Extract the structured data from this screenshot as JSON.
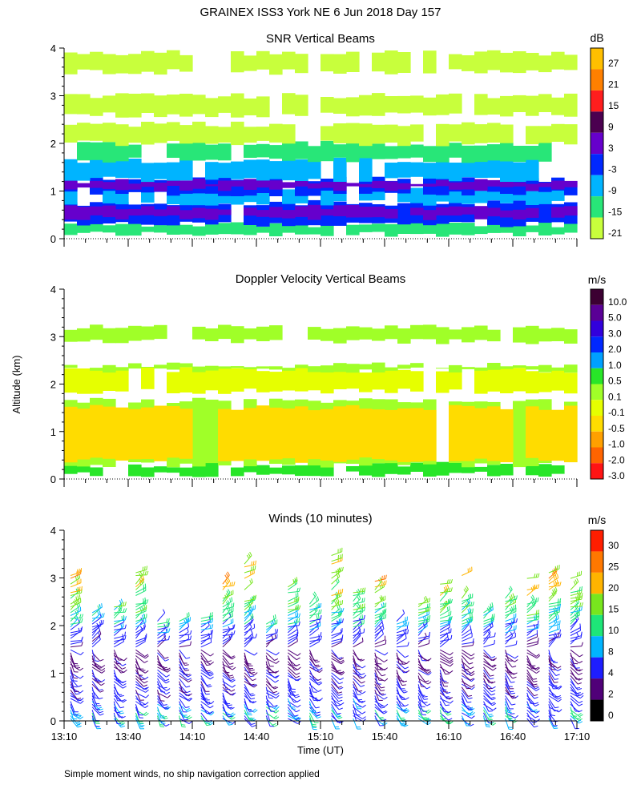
{
  "page_title": "GRAINEX ISS3 York NE    6 Jun 2018 Day 157",
  "shared_axes": {
    "ylabel": "Altitude (km)",
    "xlabel": "Time (UT)",
    "x_tick_labels": [
      "13:10",
      "13:40",
      "14:10",
      "14:40",
      "15:10",
      "15:40",
      "16:10",
      "16:40",
      "17:10"
    ],
    "y_tick_labels": [
      "0",
      "1",
      "2",
      "3",
      "4"
    ],
    "xlim": [
      "13:10",
      "17:10"
    ],
    "ylim": [
      0,
      4
    ]
  },
  "footnote": "Simple moment winds, no ship navigation correction applied",
  "chart_data": [
    {
      "type": "heatmap",
      "title": "SNR Vertical Beams",
      "colorbar_unit": "dB",
      "colorbar_labels": [
        "27",
        "21",
        "15",
        "9",
        "3",
        "-3",
        "-9",
        "-15",
        "-21"
      ],
      "colorbar_colors": [
        "#ffbf00",
        "#ff8000",
        "#ff1e1e",
        "#4b0050",
        "#6600cc",
        "#0028ff",
        "#00b4ff",
        "#28e678",
        "#c8ff3c"
      ],
      "bands": [
        {
          "y0": 0.1,
          "y1": 0.3,
          "color": "#28e678"
        },
        {
          "y0": 0.3,
          "y1": 0.75,
          "color": "#0028ff"
        },
        {
          "y0": 0.45,
          "y1": 0.65,
          "color": "#6600cc"
        },
        {
          "y0": 0.75,
          "y1": 1.05,
          "color": "#00b4ff"
        },
        {
          "y0": 0.95,
          "y1": 1.25,
          "color": "#0028ff"
        },
        {
          "y0": 1.05,
          "y1": 1.2,
          "color": "#6600cc"
        },
        {
          "y0": 1.25,
          "y1": 1.65,
          "color": "#00b4ff"
        },
        {
          "y0": 1.65,
          "y1": 2.0,
          "color": "#28e678"
        },
        {
          "y0": 2.0,
          "y1": 2.4,
          "color": "#c8ff3c"
        },
        {
          "y0": 2.6,
          "y1": 3.0,
          "color": "#c8ff3c"
        },
        {
          "y0": 3.5,
          "y1": 3.9,
          "color": "#c8ff3c"
        }
      ]
    },
    {
      "type": "heatmap",
      "title": "Doppler Velocity Vertical Beams",
      "colorbar_unit": "m/s",
      "colorbar_labels": [
        "10.0",
        "5.0",
        "3.0",
        "2.0",
        "1.0",
        "0.5",
        "0.1",
        "-0.1",
        "-0.5",
        "-1.0",
        "-2.0",
        "-3.0"
      ],
      "colorbar_colors": [
        "#3c0032",
        "#5a0096",
        "#3200dc",
        "#0028ff",
        "#00a0ff",
        "#28e628",
        "#a0ff28",
        "#e6ff00",
        "#ffdc00",
        "#ffa000",
        "#ff6400",
        "#ff1414"
      ],
      "bands": [
        {
          "y0": 0.1,
          "y1": 0.3,
          "color": "#28e628"
        },
        {
          "y0": 0.3,
          "y1": 1.65,
          "color": "#a0ff28"
        },
        {
          "y0": 0.4,
          "y1": 1.5,
          "color": "#ffdc00"
        },
        {
          "y0": 1.85,
          "y1": 2.3,
          "color": "#e6ff00"
        },
        {
          "y0": 2.3,
          "y1": 2.4,
          "color": "#a0ff28"
        },
        {
          "y0": 2.9,
          "y1": 3.2,
          "color": "#a0ff28"
        }
      ]
    },
    {
      "type": "scatter",
      "title": "Winds (10 minutes)",
      "colorbar_unit": "m/s",
      "colorbar_labels": [
        "30",
        "25",
        "20",
        "15",
        "10",
        "8",
        "4",
        "2",
        "0"
      ],
      "colorbar_colors": [
        "#ff1e00",
        "#ff7800",
        "#ffb400",
        "#78e61e",
        "#1ee678",
        "#00b4ff",
        "#1e1eff",
        "#500078",
        "#000000"
      ],
      "wind_speed_profile": [
        {
          "altitude": 0.2,
          "speed": 9
        },
        {
          "altitude": 0.6,
          "speed": 5
        },
        {
          "altitude": 1.0,
          "speed": 4
        },
        {
          "altitude": 1.4,
          "speed": 3
        },
        {
          "altitude": 1.8,
          "speed": 6
        },
        {
          "altitude": 2.2,
          "speed": 12
        },
        {
          "altitude": 2.6,
          "speed": 16
        },
        {
          "altitude": 3.0,
          "speed": 24
        },
        {
          "altitude": 3.4,
          "speed": 22
        },
        {
          "altitude": 3.8,
          "speed": 28
        }
      ]
    }
  ]
}
